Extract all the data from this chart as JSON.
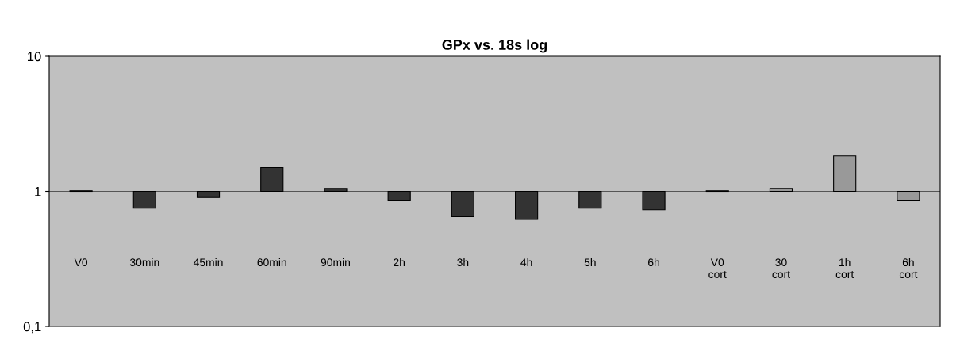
{
  "chart_data": {
    "type": "bar",
    "title": "GPx vs. 18s log",
    "categories": [
      "V0",
      "30min",
      "45min",
      "60min",
      "90min",
      "2h",
      "3h",
      "4h",
      "5h",
      "6h",
      "V0\ncort",
      "30\ncort",
      "1h\ncort",
      "6h\ncort"
    ],
    "base": [
      1,
      1,
      1,
      1,
      1,
      1,
      1,
      1,
      1,
      1,
      1,
      1,
      1,
      1
    ],
    "values": [
      0.01,
      -0.25,
      -0.1,
      0.5,
      0.05,
      -0.15,
      -0.35,
      -0.38,
      -0.25,
      -0.27,
      0.01,
      0.05,
      0.83,
      -0.15
    ],
    "colors": [
      "#333333",
      "#333333",
      "#333333",
      "#333333",
      "#333333",
      "#333333",
      "#333333",
      "#333333",
      "#333333",
      "#333333",
      "#999999",
      "#999999",
      "#999999",
      "#999999"
    ],
    "log": "y",
    "ylim": [
      0.1,
      10
    ],
    "yticks": [
      {
        "value": 0.1,
        "label": "0,1"
      },
      1,
      10
    ],
    "ref_lines": [
      {
        "axis": "y",
        "value": 1,
        "color": "#555555"
      }
    ],
    "grid": false,
    "legend": false
  }
}
